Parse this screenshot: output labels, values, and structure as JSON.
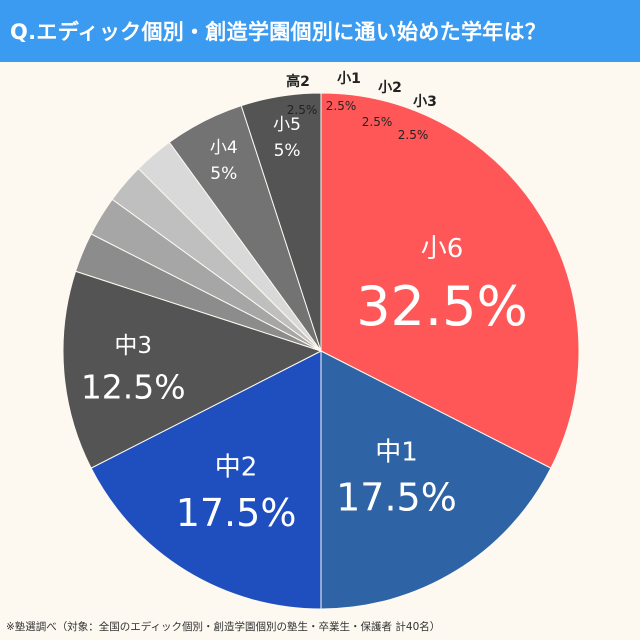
{
  "title": "Q.エディック個別・創造学園個別に通い始めた学年は？",
  "footnote": "※塾選調べ（対象：全国のエディック個別・創造学園個別の塾生・卒業生・保護者 計40名）",
  "chart_data": {
    "type": "pie",
    "title": "Q.エディック個別・創造学園個別に通い始めた学年は？",
    "slices": [
      {
        "label": "小6",
        "value": 32.5,
        "display": "32.5%",
        "color": "#ff5757"
      },
      {
        "label": "中1",
        "value": 17.5,
        "display": "17.5%",
        "color": "#2e63a6"
      },
      {
        "label": "中2",
        "value": 17.5,
        "display": "17.5%",
        "color": "#1f4fbf"
      },
      {
        "label": "中3",
        "value": 12.5,
        "display": "12.5%",
        "color": "#545454"
      },
      {
        "label": "高2",
        "value": 2.5,
        "display": "2.5%",
        "color": "#8c8c8c"
      },
      {
        "label": "小1",
        "value": 2.5,
        "display": "2.5%",
        "color": "#a6a6a6"
      },
      {
        "label": "小2",
        "value": 2.5,
        "display": "2.5%",
        "color": "#bfbfbf"
      },
      {
        "label": "小3",
        "value": 2.5,
        "display": "2.5%",
        "color": "#d9d9d9"
      },
      {
        "label": "小4",
        "value": 5,
        "display": "5%",
        "color": "#737373"
      },
      {
        "label": "小5",
        "value": 5,
        "display": "5%",
        "color": "#545454"
      }
    ]
  }
}
